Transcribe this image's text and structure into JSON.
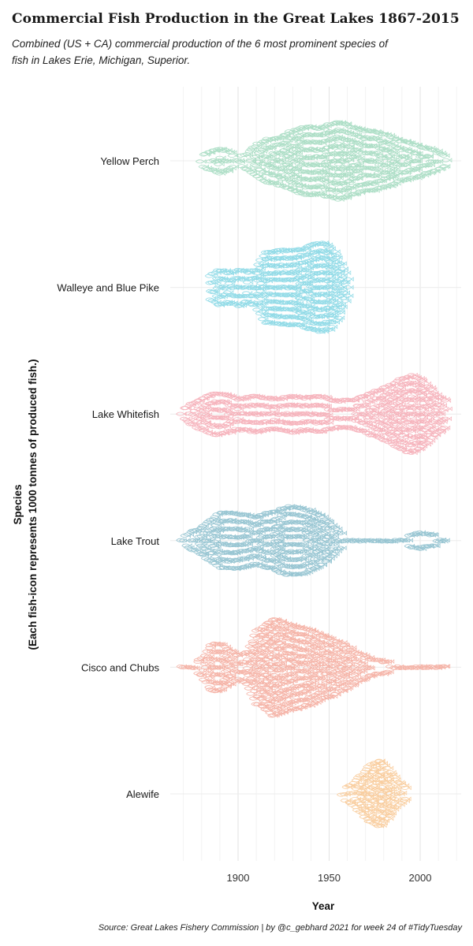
{
  "chart_data": {
    "type": "beeswarm",
    "title": "Commercial Fish Production in the Great Lakes 1867-2015",
    "subtitle": "Combined (US + CA) commercial production of the 6 most prominent species of fish in Lakes Erie, Michigan, Superior.",
    "caption": "Source: Great Lakes Fishery Commission | by @c_gebhard 2021 for week 24 of #TidyTuesday",
    "xlabel": "Year",
    "ylabel": "Species",
    "ylabel_note": "(Each fish-icon represents 1000 tonnes of produced fish.)",
    "xlim": [
      1867,
      2022
    ],
    "xticks": [
      1900,
      1950,
      2000
    ],
    "categories": [
      "Yellow Perch",
      "Walleye and Blue Pike",
      "Lake Whitefish",
      "Lake Trout",
      "Cisco and Chubs",
      "Alewife"
    ],
    "series": [
      {
        "name": "Yellow Perch",
        "color": "#9fd9bd",
        "year_range": [
          1880,
          2015
        ],
        "profile": [
          [
            1880,
            3
          ],
          [
            1885,
            6
          ],
          [
            1890,
            8
          ],
          [
            1895,
            6
          ],
          [
            1900,
            2
          ],
          [
            1905,
            5
          ],
          [
            1910,
            10
          ],
          [
            1915,
            14
          ],
          [
            1920,
            15
          ],
          [
            1925,
            17
          ],
          [
            1930,
            20
          ],
          [
            1935,
            22
          ],
          [
            1940,
            23
          ],
          [
            1945,
            22
          ],
          [
            1950,
            24
          ],
          [
            1955,
            26
          ],
          [
            1960,
            24
          ],
          [
            1965,
            22
          ],
          [
            1970,
            20
          ],
          [
            1975,
            20
          ],
          [
            1980,
            18
          ],
          [
            1985,
            16
          ],
          [
            1990,
            13
          ],
          [
            1995,
            12
          ],
          [
            2000,
            10
          ],
          [
            2005,
            8
          ],
          [
            2010,
            6
          ],
          [
            2015,
            3
          ]
        ]
      },
      {
        "name": "Walleye and Blue Pike",
        "color": "#7fd5e3",
        "year_range": [
          1885,
          1960
        ],
        "profile": [
          [
            1885,
            8
          ],
          [
            1890,
            12
          ],
          [
            1895,
            10
          ],
          [
            1900,
            12
          ],
          [
            1905,
            10
          ],
          [
            1910,
            12
          ],
          [
            1915,
            24
          ],
          [
            1920,
            24
          ],
          [
            1925,
            25
          ],
          [
            1930,
            25
          ],
          [
            1935,
            26
          ],
          [
            1940,
            28
          ],
          [
            1945,
            30
          ],
          [
            1950,
            28
          ],
          [
            1955,
            20
          ],
          [
            1960,
            6
          ]
        ]
      },
      {
        "name": "Lake Whitefish",
        "color": "#f5a8b2",
        "year_range": [
          1869,
          2015
        ],
        "profile": [
          [
            1869,
            3
          ],
          [
            1875,
            7
          ],
          [
            1880,
            10
          ],
          [
            1885,
            13
          ],
          [
            1890,
            14
          ],
          [
            1895,
            12
          ],
          [
            1900,
            10
          ],
          [
            1905,
            11
          ],
          [
            1910,
            12
          ],
          [
            1915,
            11
          ],
          [
            1920,
            10
          ],
          [
            1925,
            11
          ],
          [
            1930,
            12
          ],
          [
            1935,
            11
          ],
          [
            1940,
            11
          ],
          [
            1945,
            12
          ],
          [
            1950,
            10
          ],
          [
            1955,
            9
          ],
          [
            1960,
            9
          ],
          [
            1965,
            10
          ],
          [
            1970,
            12
          ],
          [
            1975,
            15
          ],
          [
            1980,
            17
          ],
          [
            1985,
            20
          ],
          [
            1990,
            24
          ],
          [
            1995,
            26
          ],
          [
            2000,
            24
          ],
          [
            2005,
            18
          ],
          [
            2010,
            12
          ],
          [
            2015,
            8
          ]
        ]
      },
      {
        "name": "Lake Trout",
        "color": "#86bccb",
        "year_range": [
          1869,
          2015
        ],
        "profile": [
          [
            1869,
            2
          ],
          [
            1875,
            6
          ],
          [
            1880,
            9
          ],
          [
            1885,
            13
          ],
          [
            1890,
            18
          ],
          [
            1895,
            19
          ],
          [
            1900,
            18
          ],
          [
            1905,
            17
          ],
          [
            1910,
            16
          ],
          [
            1915,
            18
          ],
          [
            1920,
            19
          ],
          [
            1925,
            22
          ],
          [
            1930,
            23
          ],
          [
            1935,
            22
          ],
          [
            1940,
            20
          ],
          [
            1945,
            17
          ],
          [
            1950,
            13
          ],
          [
            1955,
            6
          ],
          [
            1960,
            1
          ],
          [
            1990,
            2
          ],
          [
            1995,
            4
          ],
          [
            2000,
            5
          ],
          [
            2005,
            4
          ],
          [
            2010,
            3
          ],
          [
            2015,
            1
          ]
        ]
      },
      {
        "name": "Cisco and Chubs",
        "color": "#f4a89a",
        "year_range": [
          1869,
          2015
        ],
        "profile": [
          [
            1869,
            1
          ],
          [
            1875,
            2
          ],
          [
            1880,
            5
          ],
          [
            1885,
            15
          ],
          [
            1890,
            16
          ],
          [
            1895,
            12
          ],
          [
            1900,
            8
          ],
          [
            1905,
            10
          ],
          [
            1910,
            24
          ],
          [
            1915,
            28
          ],
          [
            1920,
            33
          ],
          [
            1925,
            30
          ],
          [
            1930,
            28
          ],
          [
            1935,
            27
          ],
          [
            1940,
            25
          ],
          [
            1945,
            22
          ],
          [
            1950,
            20
          ],
          [
            1955,
            17
          ],
          [
            1960,
            14
          ],
          [
            1965,
            10
          ],
          [
            1970,
            7
          ],
          [
            1975,
            5
          ],
          [
            1980,
            4
          ],
          [
            1985,
            3
          ],
          [
            1990,
            2
          ],
          [
            1995,
            2
          ],
          [
            2000,
            2
          ],
          [
            2005,
            1.5
          ],
          [
            2010,
            1
          ],
          [
            2015,
            1
          ]
        ]
      },
      {
        "name": "Alewife",
        "color": "#f8c58e",
        "year_range": [
          1957,
          1992
        ],
        "profile": [
          [
            1957,
            2
          ],
          [
            1962,
            6
          ],
          [
            1967,
            12
          ],
          [
            1972,
            18
          ],
          [
            1975,
            21
          ],
          [
            1978,
            22
          ],
          [
            1982,
            17
          ],
          [
            1985,
            12
          ],
          [
            1988,
            8
          ],
          [
            1992,
            4
          ]
        ]
      }
    ]
  }
}
